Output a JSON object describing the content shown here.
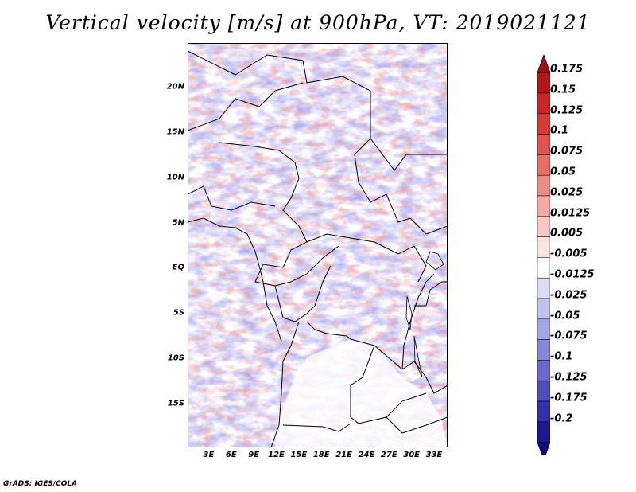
{
  "title": "Vertical velocity [m/s] at 900hPa, VT: 2019021121",
  "credit": "GrADS: IGES/COLA",
  "map": {
    "lat_labels": [
      "20N",
      "15N",
      "10N",
      "5N",
      "EQ",
      "5S",
      "10S",
      "15S"
    ],
    "lat_values": [
      20,
      15,
      10,
      5,
      0,
      -5,
      -10,
      -15
    ],
    "lon_labels": [
      "3E",
      "6E",
      "9E",
      "12E",
      "15E",
      "18E",
      "21E",
      "24E",
      "27E",
      "30E",
      "33E"
    ],
    "lon_values": [
      3,
      6,
      9,
      12,
      15,
      18,
      21,
      24,
      27,
      30,
      33
    ],
    "lon_range": [
      0.2,
      34.8
    ],
    "lat_range": [
      -19.8,
      24.8
    ]
  },
  "colorbar": {
    "labels": [
      "0.175",
      "0.15",
      "0.125",
      "0.1",
      "0.075",
      "0.05",
      "0.025",
      "0.0125",
      "0.005",
      "-0.005",
      "-0.0125",
      "-0.025",
      "-0.05",
      "-0.075",
      "-0.1",
      "-0.125",
      "-0.175",
      "-0.2"
    ],
    "colors": [
      "#b4161c",
      "#c8262a",
      "#d83a3a",
      "#e2534f",
      "#ea6e68",
      "#f08c86",
      "#f5aaa6",
      "#f9c8c5",
      "#fce4e2",
      "#ffffff",
      "#dcdcf5",
      "#c2c2ef",
      "#a6a6e6",
      "#8888da",
      "#6a6acc",
      "#4e4ebd",
      "#3232a8",
      "#1a1a8e"
    ],
    "top_color": "#a00f14",
    "bottom_color": "#10107a"
  }
}
